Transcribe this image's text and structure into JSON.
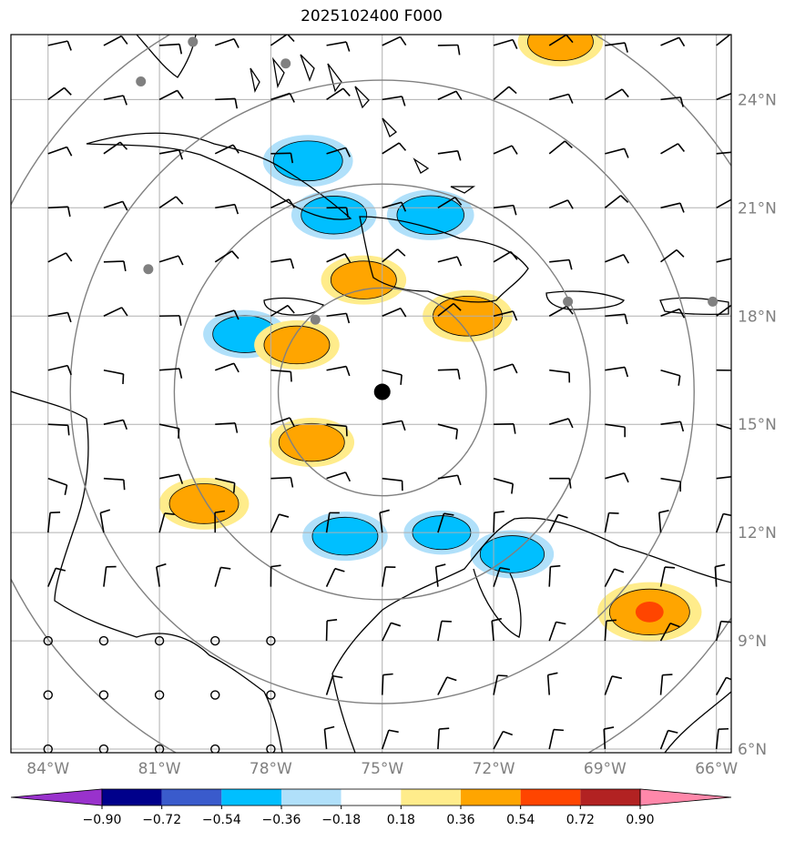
{
  "title": "2025102400 F000",
  "map": {
    "lon_range": [
      -85,
      -65.6
    ],
    "lat_range": [
      5.9,
      25.8
    ],
    "lon_ticks": [
      {
        "value": -84,
        "label": "84°W"
      },
      {
        "value": -81,
        "label": "81°W"
      },
      {
        "value": -78,
        "label": "78°W"
      },
      {
        "value": -75,
        "label": "75°W"
      },
      {
        "value": -72,
        "label": "72°W"
      },
      {
        "value": -69,
        "label": "69°W"
      },
      {
        "value": -66,
        "label": "66°W"
      }
    ],
    "lat_ticks": [
      {
        "value": 6,
        "label": "6°N"
      },
      {
        "value": 9,
        "label": "9°N"
      },
      {
        "value": 12,
        "label": "12°N"
      },
      {
        "value": 15,
        "label": "15°N"
      },
      {
        "value": 18,
        "label": "18°N"
      },
      {
        "value": 21,
        "label": "21°N"
      },
      {
        "value": 24,
        "label": "24°N"
      }
    ],
    "center": {
      "lon": -75.0,
      "lat": 15.9
    },
    "range_rings_deg": [
      2.8,
      5.6,
      8.4,
      11.2
    ],
    "stations": [
      {
        "lon": -80.1,
        "lat": 25.6
      },
      {
        "lon": -81.5,
        "lat": 24.5
      },
      {
        "lon": -77.6,
        "lat": 25.0
      },
      {
        "lon": -81.3,
        "lat": 19.3
      },
      {
        "lon": -76.8,
        "lat": 17.9
      },
      {
        "lon": -70.0,
        "lat": 18.4
      },
      {
        "lon": -66.1,
        "lat": 18.4
      }
    ],
    "anomalies": [
      {
        "lon": -77.0,
        "lat": 22.3,
        "value": -0.45
      },
      {
        "lon": -76.3,
        "lat": 20.8,
        "value": -0.4
      },
      {
        "lon": -73.7,
        "lat": 20.8,
        "value": -0.42
      },
      {
        "lon": -78.7,
        "lat": 17.5,
        "value": -0.38
      },
      {
        "lon": -76.0,
        "lat": 11.9,
        "value": -0.4
      },
      {
        "lon": -73.4,
        "lat": 12.0,
        "value": -0.3
      },
      {
        "lon": -71.5,
        "lat": 11.4,
        "value": -0.38
      },
      {
        "lon": -75.5,
        "lat": 19.0,
        "value": 0.4
      },
      {
        "lon": -72.7,
        "lat": 18.0,
        "value": 0.45
      },
      {
        "lon": -77.3,
        "lat": 17.2,
        "value": 0.4
      },
      {
        "lon": -76.9,
        "lat": 14.5,
        "value": 0.4
      },
      {
        "lon": -79.8,
        "lat": 12.8,
        "value": 0.45
      },
      {
        "lon": -67.8,
        "lat": 9.8,
        "value": 0.6
      },
      {
        "lon": -70.2,
        "lat": 25.6,
        "value": 0.4
      }
    ],
    "wind_barb_grid": {
      "lon_start": -84,
      "lat_start": 6,
      "step": 1.5
    }
  },
  "colorbar": {
    "colors": [
      "#9932cc",
      "#00008b",
      "#3a5bcc",
      "#00bfff",
      "#b0e0fa",
      "#ffffff",
      "#ffec8b",
      "#ffa500",
      "#ff4500",
      "#b22222",
      "#ff88aa"
    ],
    "tick_labels": [
      "−0.90",
      "−0.72",
      "−0.54",
      "−0.36",
      "−0.18",
      "0.18",
      "0.36",
      "0.54",
      "0.72",
      "0.90"
    ]
  }
}
